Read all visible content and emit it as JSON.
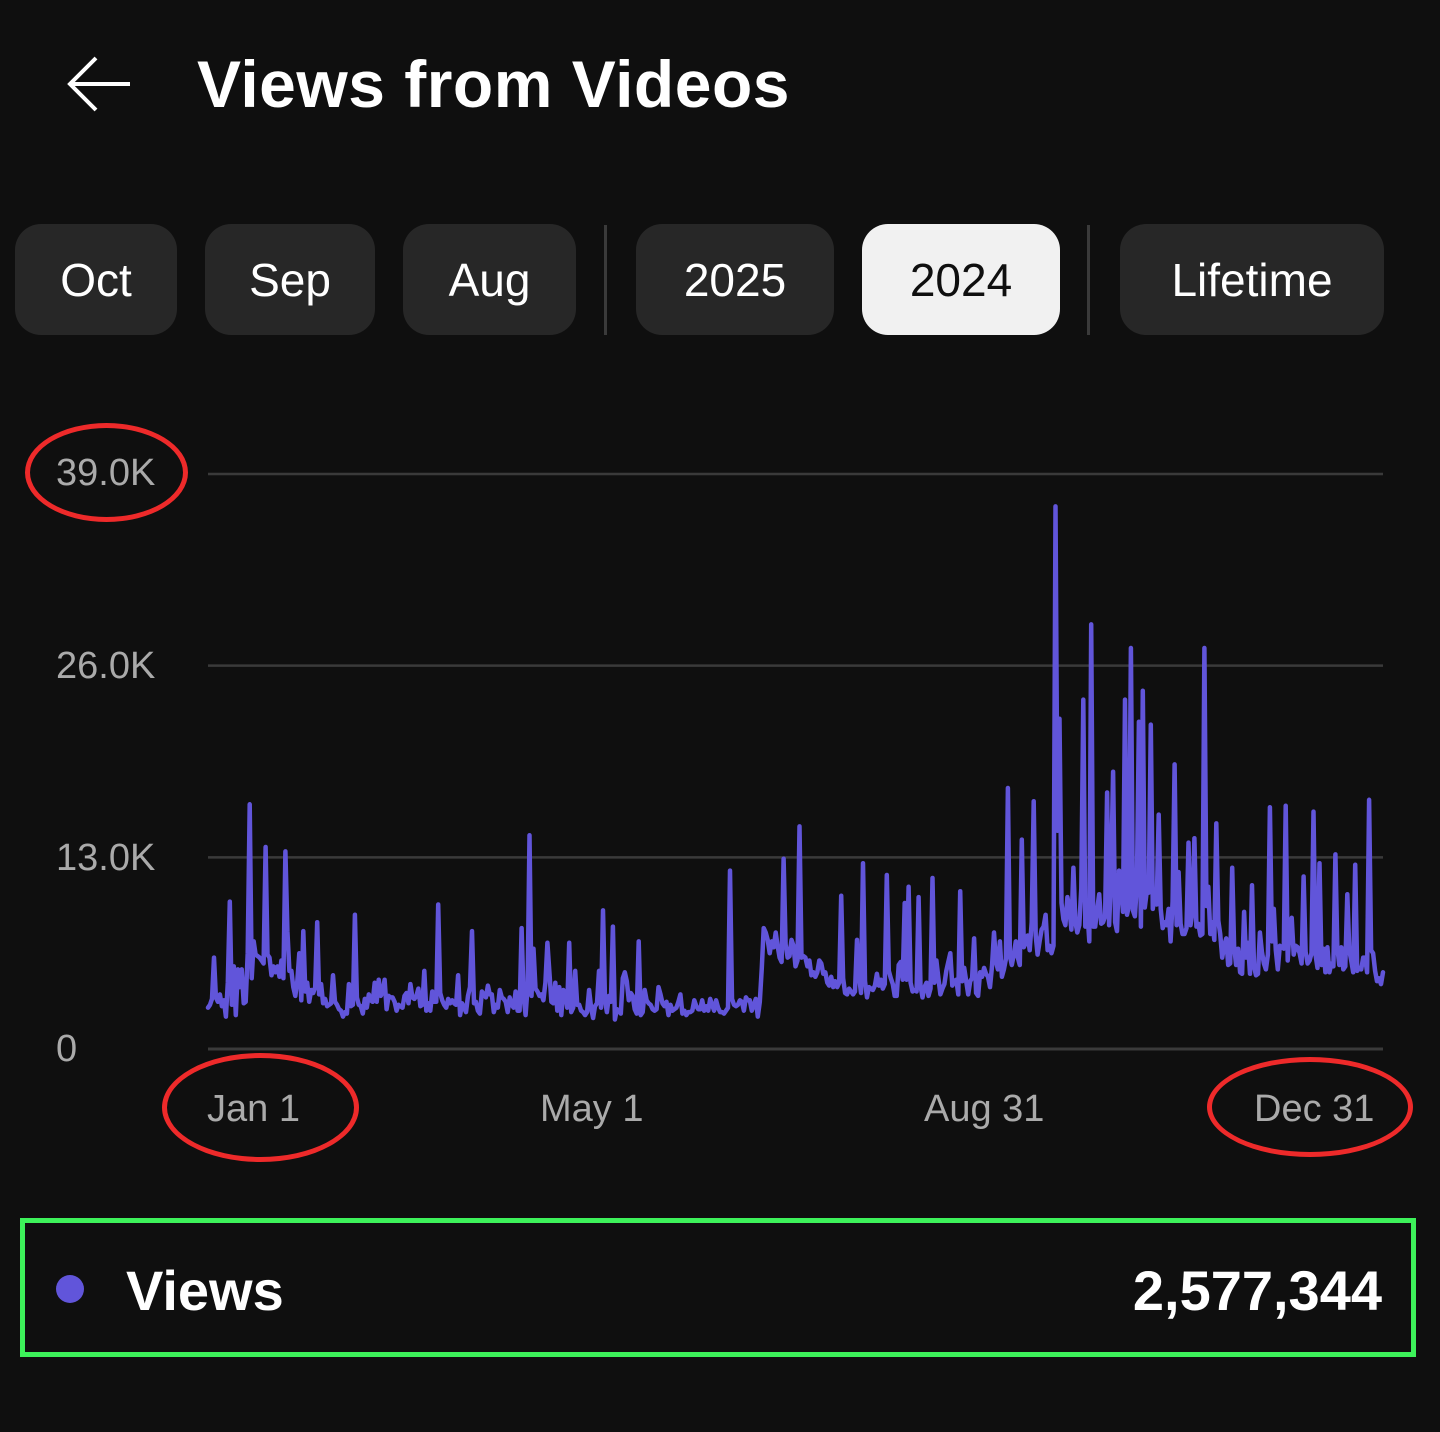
{
  "header": {
    "title": "Views from Videos",
    "back_icon": "arrow-left-icon"
  },
  "filters": {
    "chips": [
      {
        "label": "Oct",
        "selected": false
      },
      {
        "label": "Sep",
        "selected": false
      },
      {
        "label": "Aug",
        "selected": false
      },
      {
        "label": "2025",
        "selected": false
      },
      {
        "label": "2024",
        "selected": true
      },
      {
        "label": "Lifetime",
        "selected": false
      }
    ]
  },
  "colors": {
    "background": "#0f0f0f",
    "chip": "#272727",
    "chip_selected": "#f1f1f1",
    "series": "#6155da",
    "gridline": "#3a3a3a",
    "annotation_red": "#ee2a2a",
    "annotation_green": "#3df15a"
  },
  "chart_data": {
    "type": "line",
    "y_ticks": [
      "39.0K",
      "26.0K",
      "13.0K",
      "0"
    ],
    "ylim": [
      0,
      39000
    ],
    "x_ticks": [
      "Jan 1",
      "May 1",
      "Aug 31",
      "Dec 31"
    ],
    "x_range": [
      "2024-01-01",
      "2024-12-31"
    ],
    "grid": true,
    "series": [
      {
        "name": "Views",
        "color": "#6155da",
        "values": [
          2800,
          3000,
          3400,
          6200,
          3500,
          3200,
          3700,
          2900,
          3300,
          2200,
          4500,
          10000,
          3000,
          5600,
          2300,
          5400,
          4200,
          5400,
          3100,
          3200,
          6500,
          16600,
          4800,
          7300,
          6400,
          6300,
          6200,
          6000,
          5800,
          13700,
          6400,
          6200,
          5000,
          5600,
          5200,
          5600,
          4900,
          6000,
          4800,
          13400,
          8000,
          5300,
          5300,
          4200,
          3600,
          4600,
          6500,
          3300,
          8000,
          3900,
          4500,
          3200,
          4000,
          3800,
          4200,
          8600,
          3700,
          4400,
          3100,
          3400,
          2900,
          3000,
          3100,
          5000,
          3200,
          3000,
          2700,
          2600,
          2200,
          2500,
          2400,
          4400,
          2900,
          3000,
          9100,
          3500,
          3000,
          2900,
          2400,
          3400,
          2800,
          3700,
          3300,
          3200,
          4500,
          3200,
          4700,
          3600,
          3900,
          4700,
          2700,
          3600,
          3500,
          3500,
          3200,
          2600,
          3000,
          2900,
          2800,
          3600,
          3800,
          3100,
          4400,
          3500,
          3400,
          3600,
          4100,
          2900,
          3000,
          5300,
          2600,
          3100,
          2600,
          3900,
          3200,
          3200,
          9800,
          3800,
          3300,
          3000,
          2800,
          3400,
          3100,
          3300,
          3100,
          3000,
          5000,
          2300,
          3100,
          2800,
          2500,
          3600,
          4200,
          8000,
          3100,
          3200,
          2600,
          2400,
          3900,
          3700,
          3500,
          4300,
          3700,
          3700,
          2500,
          3000,
          2800,
          4000,
          3500,
          3400,
          3200,
          2500,
          3500,
          3000,
          2800,
          3900,
          2600,
          2600,
          8200,
          3500,
          2300,
          4200,
          14500,
          3600,
          6800,
          4100,
          3900,
          3600,
          3700,
          3300,
          4500,
          7200,
          5200,
          3200,
          3100,
          4500,
          2600,
          4200,
          2300,
          4000,
          3800,
          2800,
          7200,
          2500,
          2800,
          5300,
          3000,
          3000,
          2600,
          2500,
          2300,
          2500,
          4000,
          2800,
          2100,
          2900,
          3100,
          5300,
          2800,
          9400,
          3300,
          2500,
          3600,
          3200,
          8300,
          2000,
          2700,
          2600,
          2400,
          4800,
          5200,
          4600,
          3300,
          3800,
          3600,
          2700,
          2400,
          7300,
          2300,
          2500,
          4000,
          3300,
          3100,
          3000,
          2700,
          2600,
          2700,
          4200,
          3700,
          3100,
          2900,
          3200,
          2300,
          3000,
          2600,
          2700,
          2800,
          3200,
          3700,
          2400,
          2600,
          2300,
          2500,
          2500,
          2600,
          3300,
          2900,
          2700,
          2700,
          3300,
          2600,
          2900,
          2600,
          3400,
          3000,
          2600,
          3300,
          2800,
          2500,
          2500,
          2400,
          2600,
          2800,
          12100,
          3400,
          3000,
          2900,
          3000,
          3300,
          3200,
          2600,
          3500,
          3300,
          3300,
          2600,
          3000,
          3400,
          2200,
          3200,
          5500,
          8200,
          7900,
          7400,
          6500,
          7300,
          6900,
          7900,
          7000,
          6200,
          5900,
          12900,
          7100,
          6200,
          6300,
          7400,
          7000,
          5600,
          6000,
          15100,
          6200,
          6300,
          6200,
          5600,
          6000,
          5000,
          5200,
          4900,
          5200,
          6000,
          5800,
          5100,
          5200,
          4500,
          4300,
          4900,
          4200,
          4600,
          4200,
          4500,
          10400,
          4800,
          3800,
          3700,
          4100,
          3900,
          3700,
          3900,
          7400,
          5000,
          3800,
          12600,
          4600,
          3500,
          4200,
          4100,
          4000,
          4300,
          5100,
          4300,
          4700,
          4100,
          4400,
          11800,
          5300,
          4800,
          4400,
          3600,
          3600,
          5700,
          5900,
          4700,
          9900,
          4700,
          11000,
          4500,
          3900,
          4000,
          3900,
          10300,
          4300,
          3500,
          4200,
          4500,
          3600,
          4100,
          11600,
          4500,
          6000,
          4800,
          3700,
          4100,
          4400,
          5300,
          5900,
          6500,
          4300,
          4600,
          4700,
          3700,
          10700,
          4600,
          5500,
          4600,
          3700,
          4600,
          4800,
          7500,
          3800,
          3600,
          5200,
          4900,
          5500,
          5100,
          4900,
          4200,
          5600,
          7900,
          5900,
          5400,
          7300,
          4900,
          5400,
          6100,
          17700,
          6300,
          5700,
          6400,
          7300,
          6200,
          5700,
          14200,
          6900,
          7200,
          7700,
          6700,
          8600,
          16800,
          7700,
          6400,
          7300,
          8100,
          8300,
          9100,
          6700,
          7000,
          6500,
          7000,
          36800,
          14800,
          22400,
          9900,
          8800,
          8400,
          10300,
          9500,
          8100,
          12300,
          8600,
          7900,
          8400,
          10900,
          23700,
          8300,
          9400,
          7300,
          28800,
          8300,
          8300,
          9500,
          10500,
          8500,
          8600,
          9000,
          17400,
          8400,
          11700,
          18800,
          8600,
          8000,
          12100,
          11000,
          9300,
          23700,
          9100,
          9700,
          27200,
          9400,
          9000,
          11200,
          22200,
          8300,
          24300,
          9600,
          10700,
          10600,
          22000,
          9500,
          10600,
          9800,
          15900,
          9500,
          8200,
          8600,
          8400,
          9500,
          7300,
          10000,
          19300,
          8400,
          12000,
          8500,
          7800,
          7800,
          8200,
          14000,
          8400,
          9300,
          14300,
          8300,
          8500,
          7700,
          7800,
          27200,
          9700,
          11000,
          7800,
          8600,
          7400,
          15300,
          8700,
          7800,
          6200,
          7000,
          7500,
          5700,
          5800,
          12300,
          7000,
          5700,
          6800,
          5200,
          5100,
          9300,
          6200,
          7200,
          5100,
          11100,
          5600,
          5000,
          5100,
          7900,
          6600,
          5800,
          5400,
          6400,
          16400,
          7300,
          9500,
          6700,
          5400,
          7000,
          6900,
          6800,
          16500,
          6000,
          8300,
          8900,
          6400,
          7000,
          6900,
          6500,
          5800,
          11700,
          6600,
          5800,
          6000,
          6500,
          16100,
          6400,
          5500,
          12600,
          5700,
          6800,
          5200,
          6900,
          5200,
          5800,
          5600,
          13200,
          6900,
          5700,
          6900,
          5400,
          5600,
          10500,
          6700,
          6000,
          5200,
          12500,
          5300,
          5500,
          5400,
          6200,
          6200,
          5200,
          16900,
          6700,
          6500,
          5300,
          4600,
          4800,
          4400,
          5200
        ]
      }
    ]
  },
  "summary": {
    "label": "Views",
    "value": "2,577,344"
  }
}
